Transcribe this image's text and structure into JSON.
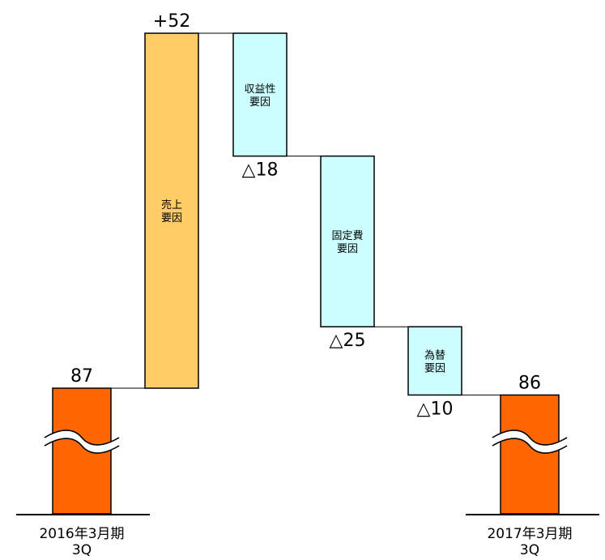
{
  "chart_data": {
    "type": "bar",
    "categories": [
      "2016年3月期\n3Q",
      "売上要因",
      "収益性要因",
      "固定費要因",
      "為替要因",
      "2017年3月期\n3Q"
    ],
    "values": [
      87,
      52,
      -18,
      -25,
      -10,
      86
    ],
    "value_labels": [
      "87",
      "+52",
      "△18",
      "△25",
      "△10",
      "86"
    ],
    "inner_labels": [
      "",
      "売上\n要因",
      "収益性\n要因",
      "固定費\n要因",
      "為替\n要因",
      ""
    ],
    "colors": {
      "total": "#ff6600",
      "increase": "#ffcc66",
      "decrease": "#ccffff"
    },
    "axis_labels": [
      "2016年3月期\n3Q",
      "",
      "",
      "",
      "",
      "2017年3月期\n3Q"
    ],
    "broken_axis": true,
    "grid": false,
    "legend": "none"
  }
}
